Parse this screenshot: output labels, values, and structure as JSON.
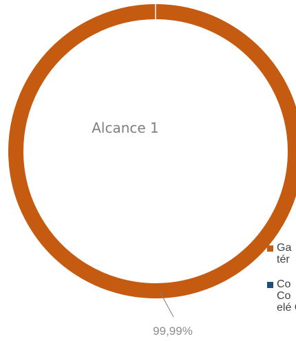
{
  "chart_data": {
    "type": "pie",
    "donut": true,
    "title": "Alcance 1",
    "slices": [
      {
        "label": "Gas natural – Combustión fija en plantas térmicas",
        "value": 99.99,
        "display": "99,99%",
        "color": "#c55a11"
      },
      {
        "label": "Combustibles – Combustión móvil en equipos eléctricos",
        "value": 0.01,
        "display": "",
        "color": "#1f4e79"
      }
    ],
    "legend": {
      "placement": "right",
      "entries": [
        "Ga tér",
        "Co Co elé G"
      ]
    }
  }
}
